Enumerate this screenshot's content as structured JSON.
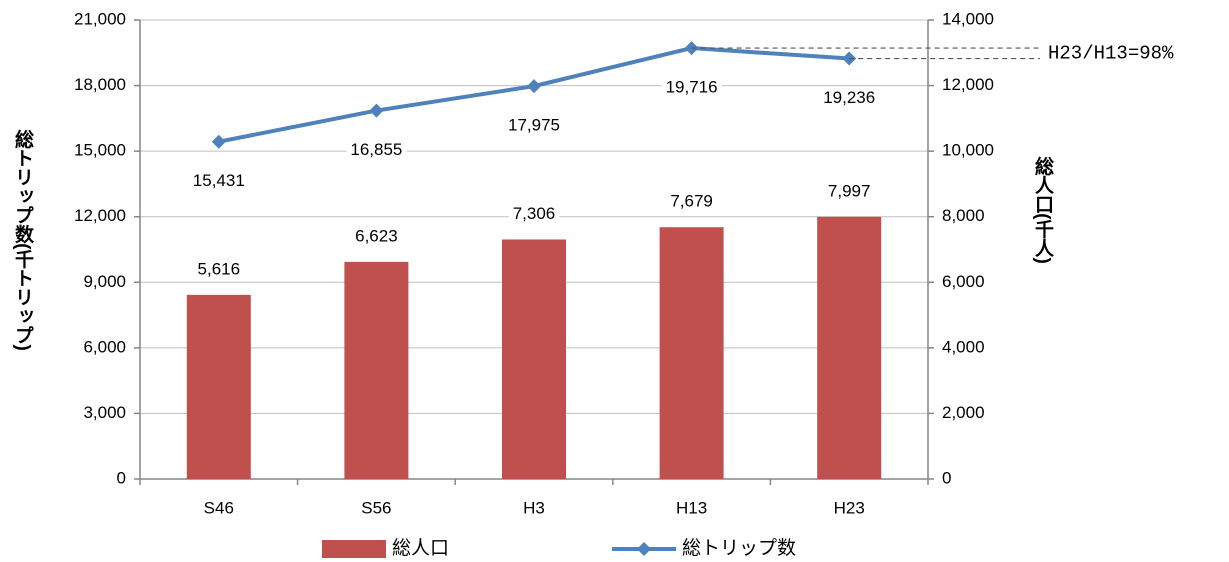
{
  "chart_data": {
    "type": "bar",
    "categories": [
      "S46",
      "S56",
      "H3",
      "H13",
      "H23"
    ],
    "series": [
      {
        "name": "総人口",
        "type": "bar",
        "color": "#c0504d",
        "axis": "y2",
        "values": [
          5616,
          6623,
          7306,
          7679,
          7997
        ],
        "value_labels": [
          "5,616",
          "6,623",
          "7,306",
          "7,679",
          "7,997"
        ]
      },
      {
        "name": "総トリップ数",
        "type": "line",
        "color": "#4f81bd",
        "values": [
          15431,
          16855,
          17975,
          19716,
          19236
        ],
        "value_labels": [
          "15,431",
          "16,855",
          "17,975",
          "19,716",
          "19,236"
        ]
      }
    ],
    "ylabel": "総トリップ数(千トリップ)",
    "y2label": "総人口(千人)",
    "ylim": [
      0,
      21000
    ],
    "yticks": [
      0,
      {
        "value": 3000,
        "label": "3,000"
      },
      {
        "value": 6000,
        "label": "6,000"
      },
      {
        "value": 9000,
        "label": "9,000"
      },
      {
        "value": 12000,
        "label": "12,000"
      },
      {
        "value": 15000,
        "label": "15,000"
      },
      {
        "value": 18000,
        "label": "18,000"
      },
      {
        "value": 21000,
        "label": "21,000"
      }
    ],
    "y2lim": [
      0,
      14000
    ],
    "y2ticks": [
      0,
      {
        "value": 2000,
        "label": "2,000"
      },
      {
        "value": 4000,
        "label": "4,000"
      },
      {
        "value": 6000,
        "label": "6,000"
      },
      {
        "value": 8000,
        "label": "8,000"
      },
      {
        "value": 10000,
        "label": "10,000"
      },
      {
        "value": 12000,
        "label": "12,000"
      },
      {
        "value": 14000,
        "label": "14,000"
      }
    ],
    "annotation": "H23/H13=98%",
    "grid": true
  }
}
